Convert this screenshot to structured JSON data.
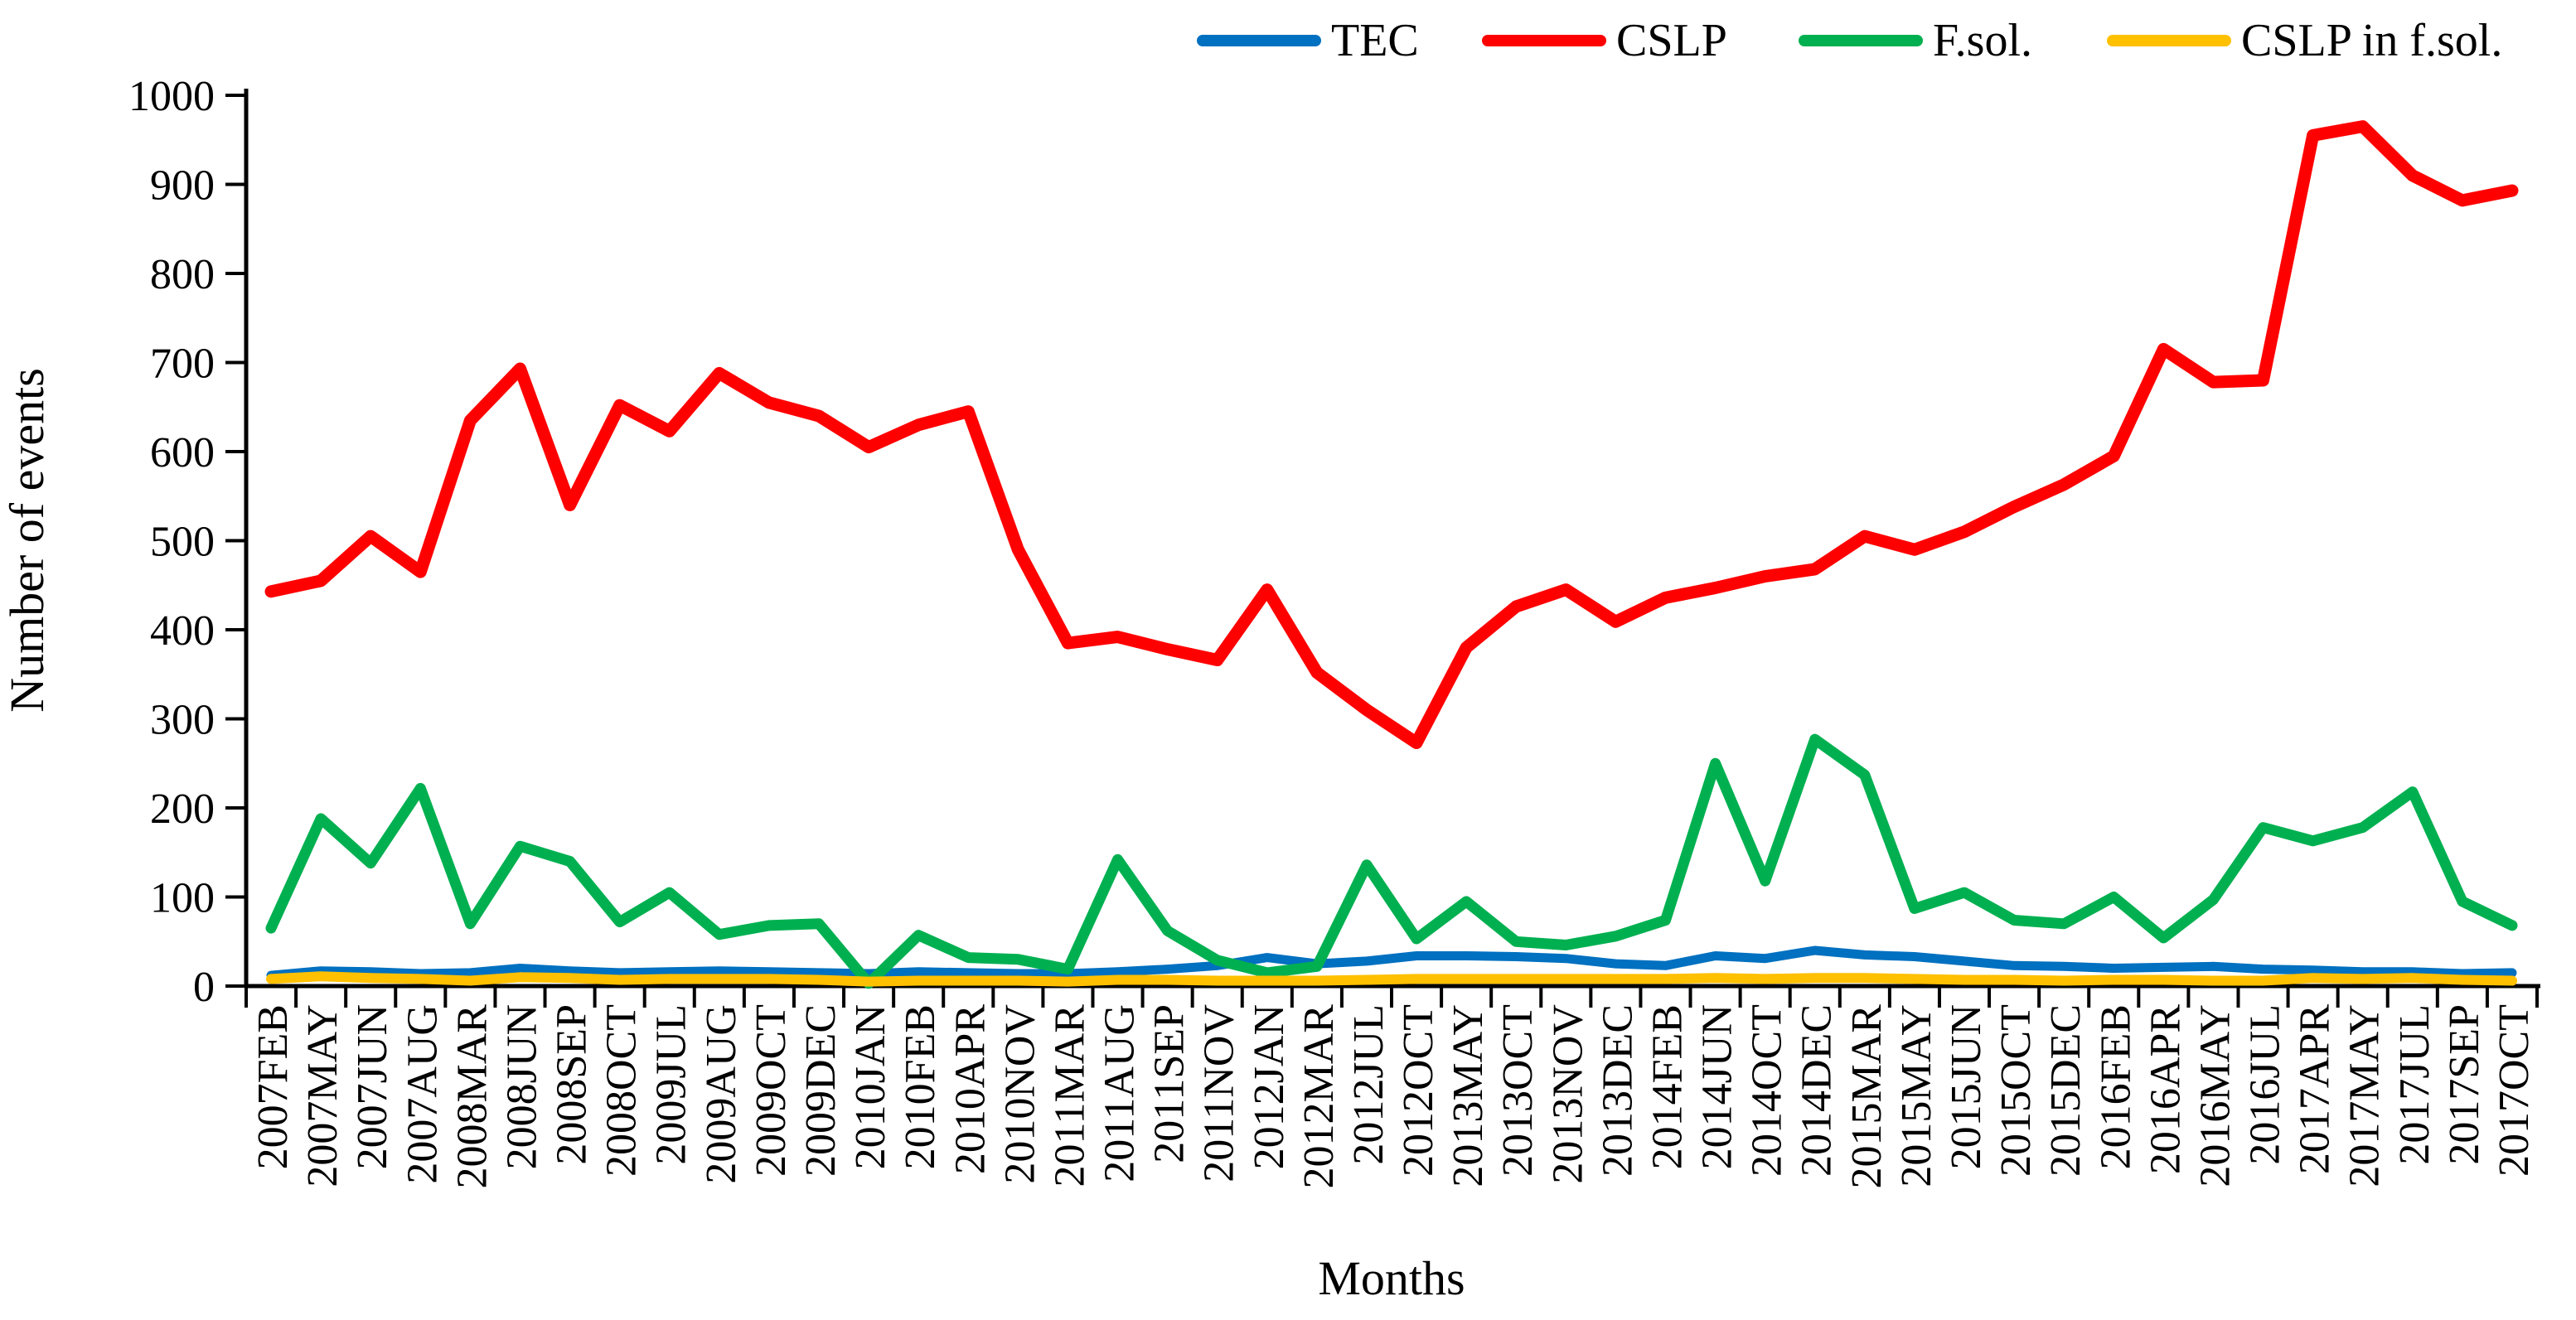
{
  "chart_data": {
    "type": "line",
    "title": "",
    "xlabel": "Months",
    "ylabel": "Number of events",
    "ylim": [
      0,
      1000
    ],
    "ytick_step": 100,
    "grid": false,
    "legend_position": "top-right",
    "axis_color": "#000000",
    "categories": [
      "2007FEB",
      "2007MAY",
      "2007JUN",
      "2007AUG",
      "2008MAR",
      "2008JUN",
      "2008SEP",
      "2008OCT",
      "2009JUL",
      "2009AUG",
      "2009OCT",
      "2009DEC",
      "2010JAN",
      "2010FEB",
      "2010APR",
      "2010NOV",
      "2011MAR",
      "2011AUG",
      "2011SEP",
      "2011NOV",
      "2012JAN",
      "2012MAR",
      "2012JUL",
      "2012OCT",
      "2013MAY",
      "2013OCT",
      "2013NOV",
      "2013DEC",
      "2014FEB",
      "2014JUN",
      "2014OCT",
      "2014DEC",
      "2015MAR",
      "2015MAY",
      "2015JUN",
      "2015OCT",
      "2015DEC",
      "2016FEB",
      "2016APR",
      "2016MAY",
      "2016JUL",
      "2017APR",
      "2017MAY",
      "2017JUL",
      "2017SEP",
      "2017OCT"
    ],
    "series": [
      {
        "name": "TEC",
        "color": "#0070C0",
        "values": [
          12,
          17,
          16,
          14,
          15,
          20,
          17,
          15,
          16,
          17,
          16,
          15,
          14,
          16,
          15,
          14,
          14,
          16,
          19,
          23,
          32,
          25,
          28,
          34,
          34,
          33,
          31,
          25,
          23,
          34,
          31,
          40,
          35,
          33,
          28,
          23,
          22,
          20,
          21,
          22,
          19,
          18,
          16,
          16,
          14,
          15
        ]
      },
      {
        "name": "CSLP",
        "color": "#FF0000",
        "values": [
          443,
          455,
          505,
          465,
          635,
          693,
          540,
          652,
          623,
          688,
          655,
          640,
          605,
          630,
          645,
          490,
          385,
          392,
          378,
          366,
          445,
          352,
          310,
          273,
          380,
          426,
          445,
          409,
          436,
          447,
          460,
          468,
          505,
          490,
          510,
          538,
          563,
          595,
          715,
          678,
          680,
          955,
          965,
          910,
          882,
          893
        ]
      },
      {
        "name": "F.sol.",
        "color": "#00B050",
        "values": [
          65,
          188,
          138,
          222,
          70,
          157,
          140,
          72,
          105,
          58,
          68,
          70,
          3,
          57,
          32,
          30,
          19,
          142,
          62,
          29,
          15,
          22,
          136,
          53,
          95,
          50,
          46,
          56,
          74,
          250,
          118,
          277,
          237,
          87,
          105,
          74,
          70,
          100,
          54,
          97,
          178,
          163,
          178,
          218,
          95,
          68
        ]
      },
      {
        "name": "CSLP in f.sol.",
        "color": "#FFC000",
        "values": [
          8,
          11,
          9,
          8,
          6,
          10,
          9,
          7,
          8,
          8,
          8,
          7,
          5,
          6,
          6,
          6,
          5,
          7,
          7,
          6,
          6,
          6,
          7,
          8,
          8,
          8,
          8,
          8,
          8,
          9,
          8,
          9,
          9,
          8,
          7,
          7,
          6,
          7,
          7,
          6,
          6,
          9,
          8,
          9,
          7,
          6
        ]
      }
    ]
  },
  "legend_layout": {
    "item_lefts": [
      1444,
      1788,
      2170,
      2542
    ]
  }
}
